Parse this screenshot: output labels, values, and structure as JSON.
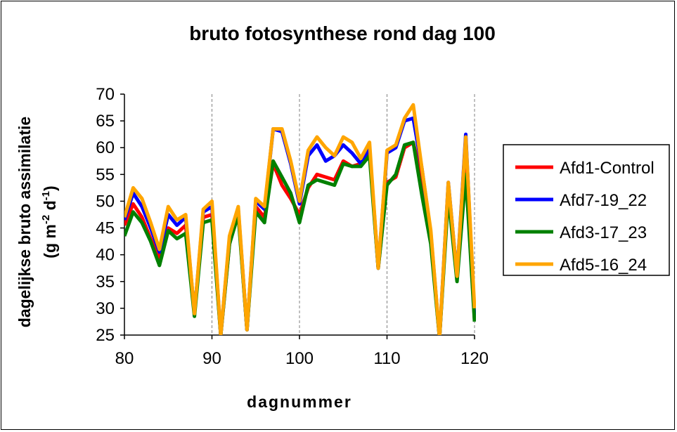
{
  "chart_data": {
    "type": "line",
    "title": "bruto fotosynthese rond dag 100",
    "xlabel": "dagnummer",
    "ylabel_line1": "dagelijkse bruto assimilatie",
    "ylabel_line2": "(g m-2 d-1)",
    "xlim": [
      80,
      120
    ],
    "ylim": [
      25,
      70
    ],
    "xticks": [
      80,
      90,
      100,
      110,
      120
    ],
    "yticks": [
      25,
      30,
      35,
      40,
      45,
      50,
      55,
      60,
      65,
      70
    ],
    "grid": "vertical dashed",
    "legend_position": "right",
    "x": [
      80,
      81,
      82,
      83,
      84,
      85,
      86,
      87,
      88,
      89,
      90,
      91,
      92,
      93,
      94,
      95,
      96,
      97,
      98,
      99,
      100,
      101,
      102,
      103,
      104,
      105,
      106,
      107,
      108,
      109,
      110,
      111,
      112,
      113,
      114,
      115,
      116,
      117,
      118,
      119,
      120
    ],
    "series": [
      {
        "name": "Afd1-Control",
        "color": "#ff0000",
        "values": [
          45.5,
          49.5,
          47,
          43,
          39.5,
          45,
          44,
          45.5,
          29,
          47,
          47.5,
          25,
          42,
          48,
          26,
          49,
          47,
          57,
          53,
          50.5,
          47.5,
          52.5,
          55,
          54.5,
          54,
          57.5,
          56.5,
          57,
          59.5,
          37.5,
          53.5,
          54.5,
          60,
          61,
          54,
          43,
          24.5,
          52,
          36,
          56,
          28
        ]
      },
      {
        "name": "Afd7-19_22",
        "color": "#0000ff",
        "values": [
          46.5,
          51.5,
          49,
          45,
          40.5,
          47.5,
          45.5,
          47,
          29,
          48,
          49,
          25,
          43,
          48.5,
          26,
          50,
          48.5,
          63.5,
          63,
          57,
          49.5,
          58.5,
          60.5,
          57.5,
          58.5,
          60.5,
          59,
          57,
          60,
          37.5,
          59,
          60,
          65,
          65.5,
          56,
          44,
          24.5,
          53.5,
          36,
          62.5,
          28
        ]
      },
      {
        "name": "Afd3-17_23",
        "color": "#008000",
        "values": [
          43.5,
          48,
          46,
          42.5,
          38,
          44.5,
          43,
          44,
          28.5,
          46,
          46.5,
          25,
          42,
          47.5,
          26,
          48,
          46,
          57.5,
          54.5,
          51.5,
          46,
          53,
          54,
          53.5,
          53,
          57,
          56.5,
          56.5,
          58.5,
          37.5,
          53,
          55,
          60.5,
          61,
          51,
          42,
          24.5,
          51,
          35,
          55,
          27.5
        ]
      },
      {
        "name": "Afd5-16_24",
        "color": "#ffa500",
        "values": [
          47,
          52.5,
          50.5,
          46,
          41,
          49,
          46.5,
          47.5,
          29,
          48.5,
          50,
          25,
          43.5,
          49,
          26,
          50.5,
          49,
          63.5,
          63.5,
          57.5,
          50,
          59.5,
          62,
          60,
          58.5,
          62,
          61,
          58,
          61,
          37.5,
          59.5,
          60.5,
          65.5,
          68,
          56,
          44.5,
          24.5,
          53.5,
          36,
          62,
          30
        ]
      }
    ]
  }
}
